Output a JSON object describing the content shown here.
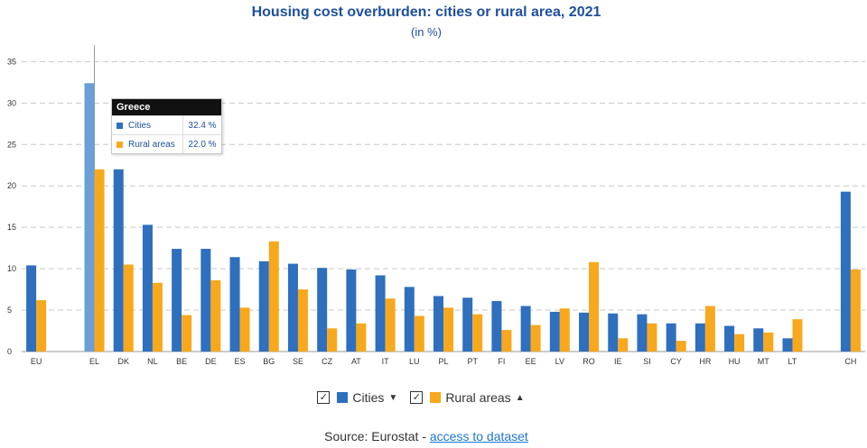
{
  "colors": {
    "cities": "#2e6fbe",
    "rural": "#f8a81d",
    "highlight": "#6a9fd8"
  },
  "legend": {
    "cities_label": "Cities",
    "rural_label": "Rural areas",
    "cities_arrow_icon": "caret-down-icon",
    "rural_arrow_icon": "sort-icon"
  },
  "tooltip": {
    "title": "Greece",
    "rows": [
      {
        "name": "Cities",
        "value": "32.4 %"
      },
      {
        "name": "Rural areas",
        "value": "22.0 %"
      }
    ]
  },
  "source": {
    "prefix": "Source: Eurostat - ",
    "link_text": "access to dataset"
  },
  "chart_data": {
    "type": "bar",
    "title": "Housing cost overburden: cities or rural area, 2021",
    "subtitle": "(in %)",
    "xlabel": "",
    "ylabel": "",
    "ylim": [
      0,
      37
    ],
    "yticks": [
      0,
      5,
      10,
      15,
      20,
      25,
      30,
      35
    ],
    "grid": true,
    "legend_position": "bottom",
    "highlighted_category": "EL",
    "categories": [
      "EU",
      "",
      "EL",
      "DK",
      "NL",
      "BE",
      "DE",
      "ES",
      "BG",
      "SE",
      "CZ",
      "AT",
      "IT",
      "LU",
      "PL",
      "PT",
      "FI",
      "EE",
      "LV",
      "RO",
      "IE",
      "SI",
      "CY",
      "HR",
      "HU",
      "MT",
      "LT",
      "",
      "CH"
    ],
    "series": [
      {
        "name": "Cities",
        "values": [
          10.4,
          null,
          32.4,
          22.0,
          15.3,
          12.4,
          12.4,
          11.4,
          10.9,
          10.6,
          10.1,
          9.9,
          9.2,
          7.8,
          6.7,
          6.5,
          6.1,
          5.5,
          4.8,
          4.7,
          4.6,
          4.5,
          3.4,
          3.4,
          3.1,
          2.8,
          1.6,
          null,
          19.3
        ]
      },
      {
        "name": "Rural areas",
        "values": [
          6.2,
          null,
          22.0,
          10.5,
          8.3,
          4.4,
          8.6,
          5.3,
          13.3,
          7.5,
          2.8,
          3.4,
          6.4,
          4.3,
          5.3,
          4.5,
          2.6,
          3.2,
          5.2,
          10.8,
          1.6,
          3.4,
          1.3,
          5.5,
          2.1,
          2.3,
          3.9,
          null,
          9.9
        ]
      }
    ]
  }
}
